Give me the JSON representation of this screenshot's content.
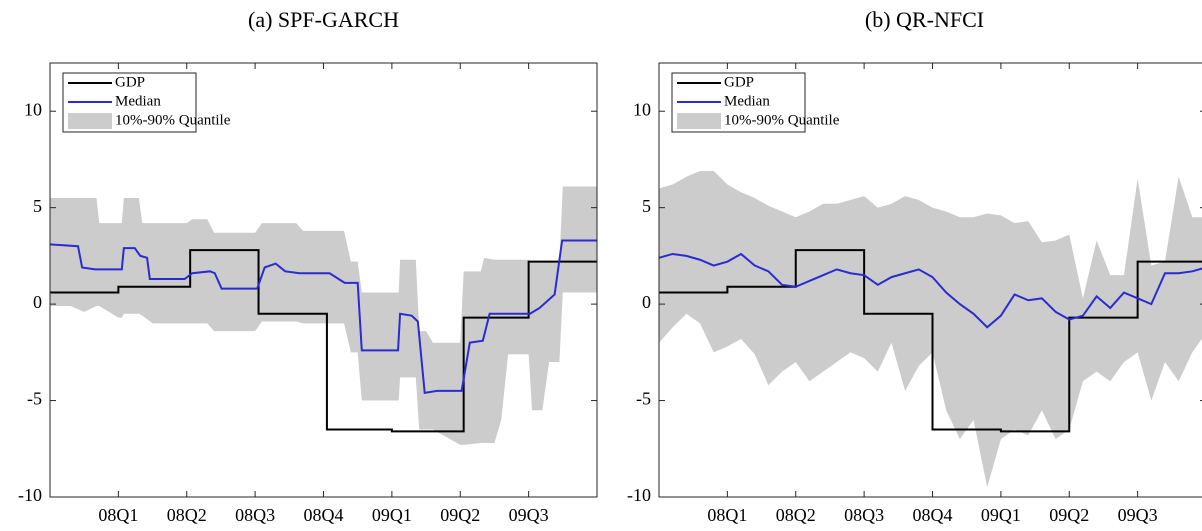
{
  "chart_data": [
    {
      "type": "line",
      "title": "(a) SPF-GARCH",
      "xlim": [
        0,
        8
      ],
      "ylim": [
        -10,
        12.5
      ],
      "yticks": [
        -10,
        -5,
        0,
        5,
        10
      ],
      "xticks": [
        {
          "value": 1,
          "label": "08Q1"
        },
        {
          "value": 2,
          "label": "08Q2"
        },
        {
          "value": 3,
          "label": "08Q3"
        },
        {
          "value": 4,
          "label": "08Q4"
        },
        {
          "value": 5,
          "label": "09Q1"
        },
        {
          "value": 6,
          "label": "09Q2"
        },
        {
          "value": 7,
          "label": "09Q3"
        }
      ],
      "legend": "upper left",
      "series": [
        {
          "name": "GDP",
          "color": "#000000",
          "x": [
            0,
            1,
            1,
            2.05,
            2.05,
            3.05,
            3.05,
            4.05,
            4.05,
            5,
            5,
            6.05,
            6.05,
            7,
            7,
            8
          ],
          "values": [
            0.6,
            0.6,
            0.9,
            0.9,
            2.8,
            2.8,
            -0.5,
            -0.5,
            -6.5,
            -6.5,
            -6.6,
            -6.6,
            -0.7,
            -0.7,
            2.2,
            2.2
          ]
        },
        {
          "name": "Median",
          "color": "#2b2bd1",
          "x": [
            0,
            0.41,
            0.47,
            0.66,
            0.68,
            1.05,
            1.08,
            1.24,
            1.32,
            1.42,
            1.46,
            1.97,
            2.08,
            2.34,
            2.41,
            2.51,
            3.03,
            3.14,
            3.3,
            3.44,
            3.65,
            4.09,
            4.31,
            4.5,
            4.56,
            5.09,
            5.12,
            5.29,
            5.38,
            5.48,
            5.66,
            6.02,
            6.14,
            6.33,
            6.43,
            7.02,
            7.16,
            7.38,
            7.49,
            8
          ],
          "values": [
            3.1,
            3.0,
            1.9,
            1.8,
            1.8,
            1.8,
            2.9,
            2.9,
            2.5,
            2.4,
            1.3,
            1.3,
            1.6,
            1.7,
            1.6,
            0.8,
            0.8,
            1.9,
            2.1,
            1.7,
            1.6,
            1.6,
            1.1,
            1.1,
            -2.4,
            -2.4,
            -0.5,
            -0.6,
            -0.9,
            -4.6,
            -4.5,
            -4.5,
            -2.0,
            -1.9,
            -0.5,
            -0.5,
            -0.2,
            0.5,
            3.3,
            3.3
          ]
        },
        {
          "name": "10%-90% Quantile",
          "color": "#cccccc",
          "x": [
            0,
            0.3,
            0.5,
            0.68,
            0.72,
            1.0,
            1.05,
            1.08,
            1.3,
            1.35,
            1.5,
            2.0,
            2.08,
            2.3,
            2.4,
            3.0,
            3.1,
            3.6,
            3.7,
            4.3,
            4.4,
            4.5,
            4.56,
            5.1,
            5.12,
            5.35,
            5.4,
            5.5,
            5.6,
            6.0,
            6.05,
            6.3,
            6.35,
            6.5,
            6.6,
            6.7,
            7.0,
            7.05,
            7.2,
            7.3,
            7.45,
            7.5,
            8
          ],
          "upper": [
            5.5,
            5.5,
            5.5,
            5.5,
            4.2,
            4.2,
            4.2,
            5.5,
            5.5,
            4.2,
            4.2,
            4.2,
            4.4,
            4.4,
            3.7,
            3.7,
            4.2,
            4.2,
            3.8,
            3.8,
            2.2,
            2.2,
            0.6,
            0.6,
            2.3,
            2.3,
            -1.4,
            -1.4,
            -2.0,
            -2.0,
            1.7,
            1.7,
            2.4,
            2.3,
            2.3,
            2.3,
            2.3,
            2.2,
            2.2,
            2.2,
            2.2,
            6.1,
            6.1
          ],
          "lower": [
            -0.1,
            -0.1,
            -0.4,
            -0.1,
            -0.1,
            -0.7,
            -0.7,
            -0.5,
            -0.5,
            -0.6,
            -1.0,
            -1.0,
            -1.0,
            -1.0,
            -1.4,
            -1.4,
            -0.9,
            -0.9,
            -1.0,
            -1.0,
            -2.5,
            -2.5,
            -5.0,
            -5.0,
            -3.8,
            -3.8,
            -6.5,
            -6.5,
            -6.5,
            -7.3,
            -7.3,
            -7.2,
            -7.2,
            -7.2,
            -6.0,
            -2.6,
            -2.6,
            -5.5,
            -5.5,
            -3.0,
            -3.0,
            0.6,
            0.6
          ]
        }
      ]
    },
    {
      "type": "line",
      "title": "(b) QR-NFCI",
      "xlim": [
        0,
        8
      ],
      "ylim": [
        -10,
        12.5
      ],
      "yticks": [
        -10,
        -5,
        0,
        5,
        10
      ],
      "xticks": [
        {
          "value": 1,
          "label": "08Q1"
        },
        {
          "value": 2,
          "label": "08Q2"
        },
        {
          "value": 3,
          "label": "08Q3"
        },
        {
          "value": 4,
          "label": "08Q4"
        },
        {
          "value": 5,
          "label": "09Q1"
        },
        {
          "value": 6,
          "label": "09Q2"
        },
        {
          "value": 7,
          "label": "09Q3"
        }
      ],
      "legend": "upper left",
      "series": [
        {
          "name": "GDP",
          "color": "#000000",
          "x": [
            0,
            1,
            1,
            2,
            2,
            3,
            3,
            4,
            4,
            5,
            5,
            6,
            6,
            7,
            7,
            8
          ],
          "values": [
            0.6,
            0.6,
            0.9,
            0.9,
            2.8,
            2.8,
            -0.5,
            -0.5,
            -6.5,
            -6.5,
            -6.6,
            -6.6,
            -0.7,
            -0.7,
            2.2,
            2.2
          ]
        },
        {
          "name": "Median",
          "color": "#2b2bd1",
          "x": [
            0,
            0.2,
            0.4,
            0.6,
            0.8,
            1.0,
            1.2,
            1.4,
            1.6,
            1.8,
            2.0,
            2.2,
            2.4,
            2.6,
            2.8,
            3.0,
            3.2,
            3.4,
            3.6,
            3.8,
            4.0,
            4.2,
            4.4,
            4.6,
            4.8,
            5.0,
            5.2,
            5.4,
            5.6,
            5.8,
            6.0,
            6.2,
            6.4,
            6.6,
            6.8,
            7.0,
            7.2,
            7.4,
            7.6,
            7.8,
            8.0
          ],
          "values": [
            2.4,
            2.6,
            2.5,
            2.3,
            2.0,
            2.2,
            2.6,
            2.0,
            1.7,
            1.0,
            0.9,
            1.2,
            1.5,
            1.8,
            1.6,
            1.5,
            1.0,
            1.4,
            1.6,
            1.8,
            1.4,
            0.6,
            0.0,
            -0.5,
            -1.2,
            -0.6,
            0.5,
            0.2,
            0.3,
            -0.4,
            -0.8,
            -0.6,
            0.4,
            -0.2,
            0.6,
            0.3,
            0.0,
            1.6,
            1.6,
            1.7,
            1.9
          ]
        },
        {
          "name": "10%-90% Quantile",
          "color": "#cccccc",
          "x": [
            0,
            0.2,
            0.4,
            0.6,
            0.8,
            1.0,
            1.2,
            1.4,
            1.6,
            1.8,
            2.0,
            2.2,
            2.4,
            2.6,
            2.8,
            3.0,
            3.2,
            3.4,
            3.6,
            3.8,
            4.0,
            4.2,
            4.4,
            4.6,
            4.8,
            5.0,
            5.2,
            5.4,
            5.6,
            5.8,
            6.0,
            6.2,
            6.4,
            6.6,
            6.8,
            7.0,
            7.2,
            7.4,
            7.6,
            7.8,
            8.0
          ],
          "upper": [
            6.0,
            6.2,
            6.6,
            6.9,
            6.9,
            6.2,
            5.8,
            5.5,
            5.1,
            4.8,
            4.5,
            4.8,
            5.2,
            5.2,
            5.4,
            5.6,
            5.0,
            5.2,
            5.6,
            5.4,
            5.0,
            4.8,
            4.5,
            4.5,
            4.7,
            4.6,
            4.2,
            4.3,
            3.2,
            3.3,
            3.6,
            0.3,
            3.3,
            1.5,
            1.5,
            6.5,
            2.0,
            2.2,
            6.6,
            4.5,
            4.5
          ],
          "lower": [
            -2.0,
            -1.2,
            -0.5,
            -1.0,
            -2.5,
            -2.2,
            -1.8,
            -2.6,
            -4.2,
            -3.5,
            -3.0,
            -4.0,
            -3.5,
            -3.0,
            -2.5,
            -2.8,
            -3.5,
            -2.0,
            -4.5,
            -3.2,
            -2.5,
            -5.5,
            -7.0,
            -6.0,
            -9.5,
            -7.0,
            -6.5,
            -6.8,
            -5.5,
            -7.0,
            -6.5,
            -4.0,
            -3.5,
            -4.0,
            -3.0,
            -2.5,
            -5.0,
            -3.0,
            -4.0,
            -2.5,
            -1.5
          ]
        }
      ]
    }
  ]
}
